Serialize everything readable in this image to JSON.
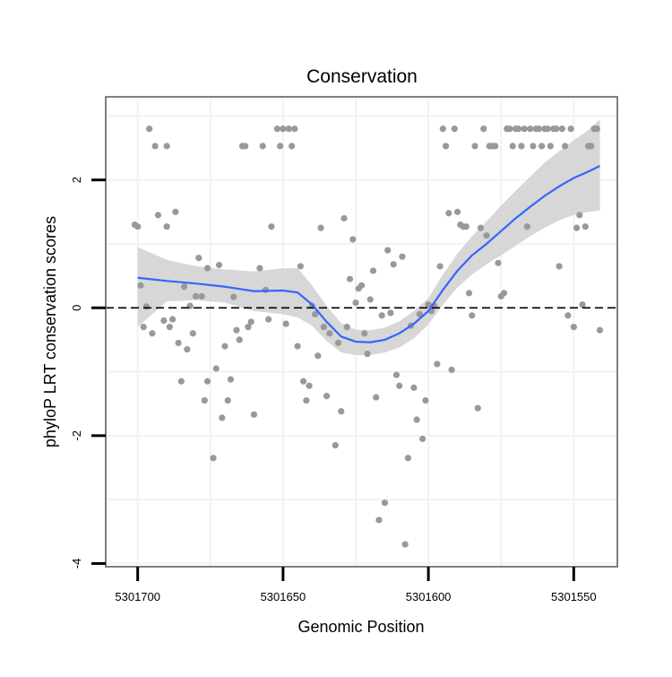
{
  "chart_data": {
    "type": "scatter",
    "title": "Conservation",
    "xlabel": "Genomic Position",
    "ylabel": "phyloP LRT conservation scores",
    "x_reversed": true,
    "xlim": [
      5301711,
      5301535
    ],
    "ylim": [
      -4.05,
      3.3
    ],
    "x_ticks": [
      5301700,
      5301650,
      5301600,
      5301550
    ],
    "x_tick_labels": [
      "5301700",
      "5301650",
      "5301600",
      "5301550"
    ],
    "y_ticks": [
      -4,
      -2,
      0,
      2
    ],
    "y_tick_labels": [
      "-4",
      "-2",
      "0",
      "2"
    ],
    "grid": true,
    "reference_line": {
      "y": 0,
      "style": "dashed"
    },
    "colors": {
      "points": "#999999",
      "smooth": "#3366ff",
      "band": "#d3d3d3",
      "panel_border": "#7f7f7f",
      "grid": "#f2f2f2"
    },
    "points": [
      [
        5301701,
        1.3
      ],
      [
        5301700,
        1.27
      ],
      [
        5301699,
        0.35
      ],
      [
        5301698,
        -0.3
      ],
      [
        5301697,
        0.02
      ],
      [
        5301696,
        2.8
      ],
      [
        5301695,
        -0.4
      ],
      [
        5301694,
        2.53
      ],
      [
        5301693,
        1.45
      ],
      [
        5301691,
        -0.2
      ],
      [
        5301690,
        1.27
      ],
      [
        5301690,
        2.53
      ],
      [
        5301689,
        -0.3
      ],
      [
        5301688,
        -0.18
      ],
      [
        5301687,
        1.5
      ],
      [
        5301686,
        -0.55
      ],
      [
        5301685,
        -1.15
      ],
      [
        5301684,
        0.33
      ],
      [
        5301683,
        -0.65
      ],
      [
        5301682,
        0.03
      ],
      [
        5301681,
        -0.4
      ],
      [
        5301680,
        0.18
      ],
      [
        5301679,
        0.78
      ],
      [
        5301678,
        0.18
      ],
      [
        5301677,
        -1.45
      ],
      [
        5301676,
        -1.15
      ],
      [
        5301676,
        0.62
      ],
      [
        5301674,
        -2.35
      ],
      [
        5301673,
        -0.95
      ],
      [
        5301672,
        0.67
      ],
      [
        5301671,
        -1.72
      ],
      [
        5301670,
        -0.6
      ],
      [
        5301669,
        -1.45
      ],
      [
        5301668,
        -1.12
      ],
      [
        5301667,
        0.17
      ],
      [
        5301666,
        -0.35
      ],
      [
        5301665,
        -0.5
      ],
      [
        5301664,
        2.53
      ],
      [
        5301663,
        2.53
      ],
      [
        5301662,
        -0.3
      ],
      [
        5301661,
        -0.22
      ],
      [
        5301660,
        -1.67
      ],
      [
        5301658,
        0.62
      ],
      [
        5301657,
        2.53
      ],
      [
        5301656,
        0.28
      ],
      [
        5301655,
        -0.18
      ],
      [
        5301654,
        1.27
      ],
      [
        5301652,
        2.8
      ],
      [
        5301651,
        2.53
      ],
      [
        5301650,
        2.8
      ],
      [
        5301649,
        -0.25
      ],
      [
        5301648,
        2.8
      ],
      [
        5301647,
        2.53
      ],
      [
        5301646,
        2.8
      ],
      [
        5301645,
        -0.6
      ],
      [
        5301644,
        0.65
      ],
      [
        5301643,
        -1.15
      ],
      [
        5301642,
        -1.45
      ],
      [
        5301641,
        -1.22
      ],
      [
        5301640,
        0.03
      ],
      [
        5301639,
        -0.1
      ],
      [
        5301638,
        -0.75
      ],
      [
        5301637,
        1.25
      ],
      [
        5301636,
        -0.3
      ],
      [
        5301635,
        -1.38
      ],
      [
        5301634,
        -0.4
      ],
      [
        5301632,
        -2.15
      ],
      [
        5301631,
        -0.55
      ],
      [
        5301630,
        -1.62
      ],
      [
        5301629,
        1.4
      ],
      [
        5301628,
        -0.3
      ],
      [
        5301627,
        0.45
      ],
      [
        5301626,
        1.07
      ],
      [
        5301625,
        0.08
      ],
      [
        5301624,
        0.3
      ],
      [
        5301623,
        0.35
      ],
      [
        5301622,
        -0.4
      ],
      [
        5301621,
        -0.72
      ],
      [
        5301620,
        0.13
      ],
      [
        5301619,
        0.58
      ],
      [
        5301618,
        -1.4
      ],
      [
        5301617,
        -3.32
      ],
      [
        5301616,
        -0.12
      ],
      [
        5301615,
        -3.05
      ],
      [
        5301614,
        0.9
      ],
      [
        5301613,
        -0.08
      ],
      [
        5301612,
        0.68
      ],
      [
        5301611,
        -1.05
      ],
      [
        5301610,
        -1.22
      ],
      [
        5301609,
        0.8
      ],
      [
        5301608,
        -3.7
      ],
      [
        5301607,
        -2.35
      ],
      [
        5301606,
        -0.28
      ],
      [
        5301605,
        -1.25
      ],
      [
        5301604,
        -1.75
      ],
      [
        5301603,
        -0.1
      ],
      [
        5301602,
        -2.05
      ],
      [
        5301601,
        -1.45
      ],
      [
        5301600,
        0.05
      ],
      [
        5301599,
        -0.05
      ],
      [
        5301598,
        0.03
      ],
      [
        5301597,
        -0.88
      ],
      [
        5301596,
        0.65
      ],
      [
        5301595,
        2.8
      ],
      [
        5301594,
        2.53
      ],
      [
        5301593,
        1.48
      ],
      [
        5301592,
        -0.97
      ],
      [
        5301591,
        2.8
      ],
      [
        5301590,
        1.5
      ],
      [
        5301589,
        1.3
      ],
      [
        5301588,
        1.27
      ],
      [
        5301587,
        1.27
      ],
      [
        5301586,
        0.23
      ],
      [
        5301585,
        -0.12
      ],
      [
        5301584,
        2.53
      ],
      [
        5301583,
        -1.57
      ],
      [
        5301582,
        1.25
      ],
      [
        5301581,
        2.8
      ],
      [
        5301580,
        1.13
      ],
      [
        5301579,
        2.53
      ],
      [
        5301578,
        2.53
      ],
      [
        5301577,
        2.53
      ],
      [
        5301576,
        0.7
      ],
      [
        5301575,
        0.18
      ],
      [
        5301574,
        0.23
      ],
      [
        5301573,
        2.8
      ],
      [
        5301572,
        2.8
      ],
      [
        5301571,
        2.53
      ],
      [
        5301570,
        2.8
      ],
      [
        5301569,
        2.8
      ],
      [
        5301568,
        2.53
      ],
      [
        5301567,
        2.8
      ],
      [
        5301566,
        1.27
      ],
      [
        5301565,
        2.8
      ],
      [
        5301564,
        2.53
      ],
      [
        5301563,
        2.8
      ],
      [
        5301562,
        2.8
      ],
      [
        5301561,
        2.53
      ],
      [
        5301560,
        2.8
      ],
      [
        5301559,
        2.8
      ],
      [
        5301558,
        2.53
      ],
      [
        5301557,
        2.8
      ],
      [
        5301556,
        2.8
      ],
      [
        5301555,
        0.65
      ],
      [
        5301554,
        2.8
      ],
      [
        5301553,
        2.53
      ],
      [
        5301552,
        -0.12
      ],
      [
        5301551,
        2.8
      ],
      [
        5301550,
        -0.3
      ],
      [
        5301549,
        1.25
      ],
      [
        5301548,
        1.45
      ],
      [
        5301547,
        0.05
      ],
      [
        5301546,
        1.27
      ],
      [
        5301545,
        2.53
      ],
      [
        5301544,
        2.53
      ],
      [
        5301543,
        2.8
      ],
      [
        5301542,
        2.8
      ],
      [
        5301541,
        -0.35
      ]
    ],
    "smooth": [
      [
        5301700,
        0.47
      ],
      [
        5301690,
        0.42
      ],
      [
        5301680,
        0.38
      ],
      [
        5301670,
        0.33
      ],
      [
        5301660,
        0.26
      ],
      [
        5301650,
        0.27
      ],
      [
        5301645,
        0.24
      ],
      [
        5301640,
        0.05
      ],
      [
        5301635,
        -0.22
      ],
      [
        5301630,
        -0.45
      ],
      [
        5301625,
        -0.53
      ],
      [
        5301620,
        -0.54
      ],
      [
        5301615,
        -0.5
      ],
      [
        5301610,
        -0.4
      ],
      [
        5301605,
        -0.25
      ],
      [
        5301600,
        -0.05
      ],
      [
        5301595,
        0.28
      ],
      [
        5301590,
        0.58
      ],
      [
        5301585,
        0.82
      ],
      [
        5301580,
        1.0
      ],
      [
        5301575,
        1.2
      ],
      [
        5301570,
        1.4
      ],
      [
        5301565,
        1.58
      ],
      [
        5301560,
        1.75
      ],
      [
        5301555,
        1.9
      ],
      [
        5301550,
        2.03
      ],
      [
        5301545,
        2.13
      ],
      [
        5301541,
        2.22
      ]
    ],
    "band_upper": [
      [
        5301700,
        0.95
      ],
      [
        5301690,
        0.75
      ],
      [
        5301680,
        0.65
      ],
      [
        5301670,
        0.6
      ],
      [
        5301660,
        0.57
      ],
      [
        5301650,
        0.62
      ],
      [
        5301645,
        0.62
      ],
      [
        5301640,
        0.35
      ],
      [
        5301635,
        0.03
      ],
      [
        5301630,
        -0.24
      ],
      [
        5301625,
        -0.34
      ],
      [
        5301620,
        -0.35
      ],
      [
        5301615,
        -0.31
      ],
      [
        5301610,
        -0.21
      ],
      [
        5301605,
        -0.05
      ],
      [
        5301600,
        0.15
      ],
      [
        5301595,
        0.52
      ],
      [
        5301590,
        0.85
      ],
      [
        5301585,
        1.12
      ],
      [
        5301580,
        1.35
      ],
      [
        5301575,
        1.6
      ],
      [
        5301570,
        1.83
      ],
      [
        5301565,
        2.05
      ],
      [
        5301560,
        2.27
      ],
      [
        5301555,
        2.45
      ],
      [
        5301550,
        2.62
      ],
      [
        5301545,
        2.78
      ],
      [
        5301541,
        2.95
      ]
    ],
    "band_lower": [
      [
        5301700,
        -0.3
      ],
      [
        5301690,
        0.1
      ],
      [
        5301680,
        0.12
      ],
      [
        5301670,
        0.08
      ],
      [
        5301660,
        -0.05
      ],
      [
        5301650,
        -0.1
      ],
      [
        5301645,
        -0.15
      ],
      [
        5301640,
        -0.28
      ],
      [
        5301635,
        -0.52
      ],
      [
        5301630,
        -0.7
      ],
      [
        5301625,
        -0.74
      ],
      [
        5301620,
        -0.74
      ],
      [
        5301615,
        -0.7
      ],
      [
        5301610,
        -0.62
      ],
      [
        5301605,
        -0.48
      ],
      [
        5301600,
        -0.26
      ],
      [
        5301595,
        0.05
      ],
      [
        5301590,
        0.32
      ],
      [
        5301585,
        0.52
      ],
      [
        5301580,
        0.68
      ],
      [
        5301575,
        0.82
      ],
      [
        5301570,
        0.97
      ],
      [
        5301565,
        1.12
      ],
      [
        5301560,
        1.25
      ],
      [
        5301555,
        1.37
      ],
      [
        5301550,
        1.45
      ],
      [
        5301545,
        1.5
      ],
      [
        5301541,
        1.52
      ]
    ]
  }
}
